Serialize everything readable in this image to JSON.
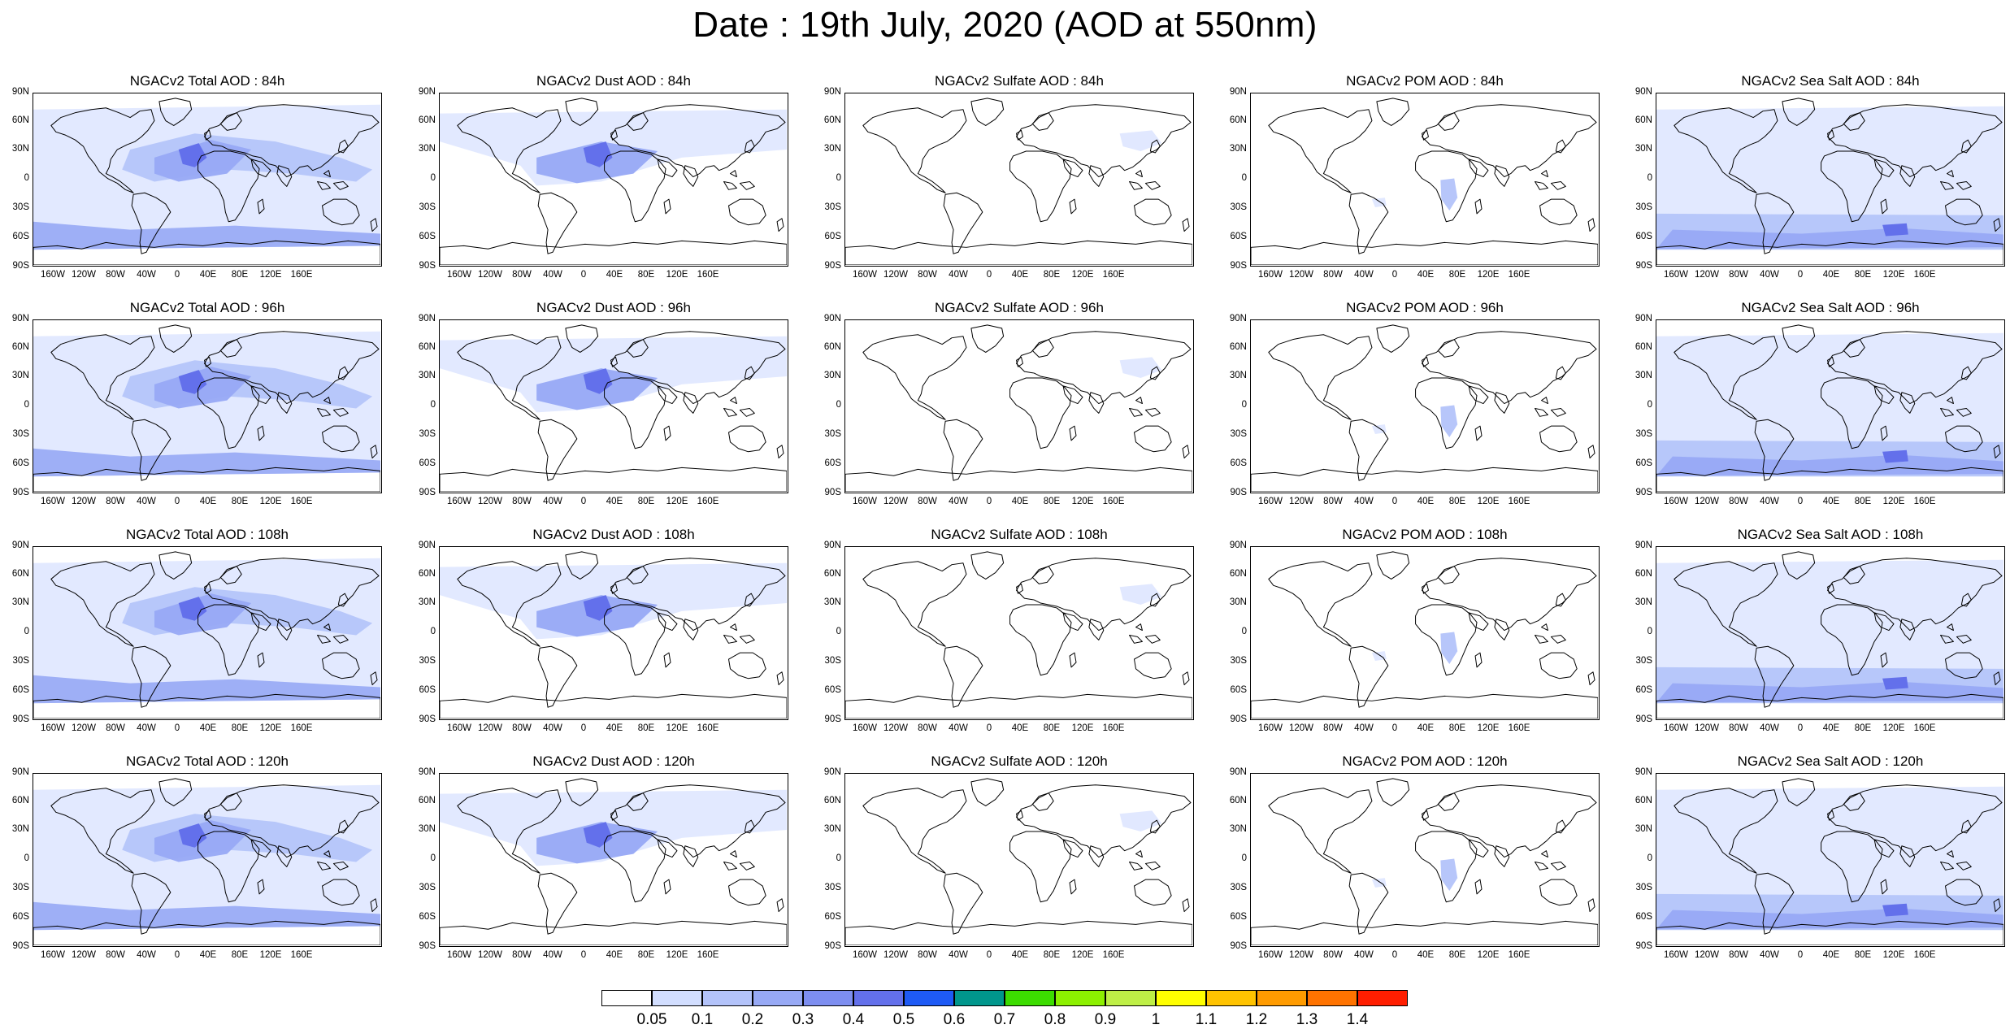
{
  "title": "Date : 19th July, 2020 (AOD at 550nm)",
  "lat_labels": [
    "90N",
    "60N",
    "30N",
    "0",
    "30S",
    "60S",
    "90S"
  ],
  "lon_labels": [
    "160W",
    "120W",
    "80W",
    "40W",
    "0",
    "40E",
    "80E",
    "120E",
    "160E"
  ],
  "rows": [
    {
      "panels": [
        {
          "title": "NGACv2 Total AOD : 84h",
          "field": "total"
        },
        {
          "title": "NGACv2 Dust AOD : 84h",
          "field": "dust"
        },
        {
          "title": "NGACv2 Sulfate AOD : 84h",
          "field": "sulfate"
        },
        {
          "title": "NGACv2 POM AOD : 84h",
          "field": "pom"
        },
        {
          "title": "NGACv2 Sea Salt AOD : 84h",
          "field": "seasalt"
        }
      ]
    },
    {
      "panels": [
        {
          "title": "NGACv2 Total AOD : 96h",
          "field": "total"
        },
        {
          "title": "NGACv2 Dust AOD : 96h",
          "field": "dust"
        },
        {
          "title": "NGACv2 Sulfate AOD : 96h",
          "field": "sulfate"
        },
        {
          "title": "NGACv2 POM AOD : 96h",
          "field": "pom"
        },
        {
          "title": "NGACv2 Sea Salt AOD : 96h",
          "field": "seasalt"
        }
      ]
    },
    {
      "panels": [
        {
          "title": "NGACv2 Total AOD : 108h",
          "field": "total"
        },
        {
          "title": "NGACv2 Dust AOD : 108h",
          "field": "dust"
        },
        {
          "title": "NGACv2 Sulfate AOD : 108h",
          "field": "sulfate"
        },
        {
          "title": "NGACv2 POM AOD : 108h",
          "field": "pom"
        },
        {
          "title": "NGACv2 Sea Salt AOD : 108h",
          "field": "seasalt"
        }
      ]
    },
    {
      "panels": [
        {
          "title": "NGACv2 Total AOD : 120h",
          "field": "total"
        },
        {
          "title": "NGACv2 Dust AOD : 120h",
          "field": "dust"
        },
        {
          "title": "NGACv2 Sulfate AOD : 120h",
          "field": "sulfate"
        },
        {
          "title": "NGACv2 POM AOD : 120h",
          "field": "pom"
        },
        {
          "title": "NGACv2 Sea Salt  AOD : 120h",
          "field": "seasalt"
        }
      ]
    }
  ],
  "colorbar": {
    "labels": [
      "0.05",
      "0.1",
      "0.2",
      "0.3",
      "0.4",
      "0.5",
      "0.6",
      "0.7",
      "0.8",
      "0.9",
      "1",
      "1.1",
      "1.2",
      "1.3",
      "1.4"
    ],
    "colors": [
      "#ffffff",
      "#d2deff",
      "#b3c3fa",
      "#97a9f5",
      "#7d8ef0",
      "#6370eb",
      "#1e5af5",
      "#00968c",
      "#3cdc00",
      "#8cf000",
      "#beef46",
      "#ffff00",
      "#ffc300",
      "#ff9b00",
      "#ff7300",
      "#ff1e00"
    ]
  },
  "colors": {
    "land_outline": "#000000",
    "low_aod": "#dfe7ff",
    "mid_aod": "#97a9f5",
    "high_aod": "#6370eb"
  }
}
